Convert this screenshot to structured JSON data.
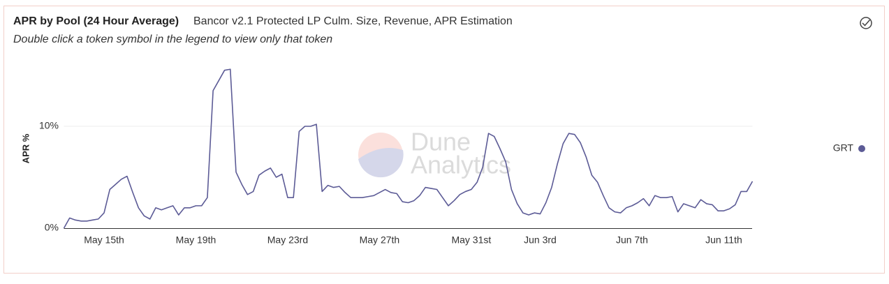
{
  "chart_data": {
    "type": "line",
    "title": "APR by Pool (24 Hour Average)",
    "subtitle": "Bancor v2.1 Protected LP Culm. Size, Revenue, APR Estimation",
    "note": "Double click a token symbol in the legend to view only that token",
    "y_label": "APR %",
    "watermark": [
      "Dune",
      "Analytics"
    ],
    "categories": [
      null,
      null,
      null,
      null,
      null,
      null,
      null,
      "May 15th",
      null,
      null,
      null,
      null,
      null,
      null,
      null,
      null,
      null,
      null,
      null,
      null,
      null,
      null,
      null,
      "May 19th",
      null,
      null,
      null,
      null,
      null,
      null,
      null,
      null,
      null,
      null,
      null,
      null,
      null,
      null,
      null,
      "May 23rd",
      null,
      null,
      null,
      null,
      null,
      null,
      null,
      null,
      null,
      null,
      null,
      null,
      null,
      null,
      null,
      "May 27th",
      null,
      null,
      null,
      null,
      null,
      null,
      null,
      null,
      null,
      null,
      null,
      null,
      null,
      null,
      null,
      "May 31st",
      null,
      null,
      null,
      null,
      null,
      null,
      null,
      null,
      null,
      null,
      null,
      "Jun 3rd",
      null,
      null,
      null,
      null,
      null,
      null,
      null,
      null,
      null,
      null,
      null,
      null,
      null,
      null,
      null,
      "Jun 7th",
      null,
      null,
      null,
      null,
      null,
      null,
      null,
      null,
      null,
      null,
      null,
      null,
      null,
      null,
      null,
      "Jun 11th",
      null,
      null,
      null,
      null,
      null
    ],
    "series": [
      {
        "name": "GRT",
        "color": "#5c5b96",
        "values": [
          0,
          1.0,
          0.8,
          0.7,
          0.7,
          0.8,
          0.9,
          1.5,
          3.8,
          4.3,
          4.8,
          5.1,
          3.5,
          2.0,
          1.2,
          0.9,
          2.0,
          1.8,
          2.0,
          2.2,
          1.3,
          2.0,
          2.0,
          2.2,
          2.2,
          3.0,
          13.5,
          14.5,
          15.5,
          15.6,
          5.5,
          4.3,
          3.3,
          3.6,
          5.2,
          5.6,
          5.9,
          5.0,
          5.3,
          3.0,
          3.0,
          9.5,
          10.0,
          10.0,
          10.2,
          3.6,
          4.2,
          4.0,
          4.1,
          3.5,
          3.0,
          3.0,
          3.0,
          3.1,
          3.2,
          3.5,
          3.8,
          3.5,
          3.4,
          2.6,
          2.5,
          2.7,
          3.2,
          4.0,
          3.9,
          3.8,
          3.0,
          2.2,
          2.7,
          3.3,
          3.6,
          3.8,
          4.5,
          6.0,
          9.3,
          9.0,
          7.8,
          6.5,
          3.8,
          2.4,
          1.5,
          1.3,
          1.5,
          1.4,
          2.5,
          4.0,
          6.3,
          8.3,
          9.3,
          9.2,
          8.4,
          7.0,
          5.2,
          4.5,
          3.2,
          2.0,
          1.6,
          1.5,
          2.0,
          2.2,
          2.5,
          2.9,
          2.2,
          3.2,
          3.0,
          3.0,
          3.1,
          1.6,
          2.4,
          2.2,
          2.0,
          2.8,
          2.4,
          2.3,
          1.7,
          1.7,
          1.9,
          2.3,
          3.6,
          3.6,
          4.6
        ]
      }
    ],
    "ylim": [
      0,
      16
    ],
    "yticks": [
      {
        "value": 0,
        "label": "0%"
      },
      {
        "value": 10,
        "label": "10%"
      }
    ],
    "grid": true,
    "legend": "right"
  }
}
